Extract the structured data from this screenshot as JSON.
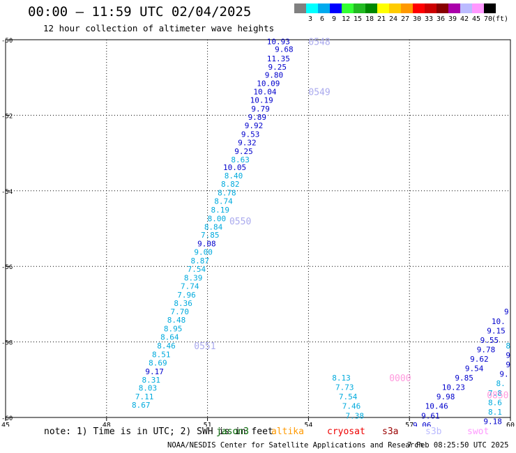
{
  "header": {
    "title": "00:00 — 11:59 UTC 02/04/2025",
    "subtitle": "12 hour collection of altimeter wave heights"
  },
  "legend": {
    "colors": [
      "#808080",
      "#00ffff",
      "#00aaee",
      "#0000ff",
      "#33ff33",
      "#22bb22",
      "#008800",
      "#ffff00",
      "#ffcc00",
      "#ff9900",
      "#ff0000",
      "#cc0000",
      "#880000",
      "#aa00aa",
      "#bbbbff",
      "#ff99ff",
      "#000000"
    ],
    "labels": [
      "3",
      "6",
      "9",
      "12",
      "15",
      "18",
      "21",
      "24",
      "27",
      "30",
      "33",
      "36",
      "39",
      "42",
      "45",
      "70",
      "(ft)"
    ]
  },
  "chart_data": {
    "type": "scatter",
    "xlim": [
      45,
      60
    ],
    "ylim": [
      -60,
      -50
    ],
    "x_ticks": [
      "45",
      "48",
      "51",
      "54",
      "57",
      "60"
    ],
    "y_ticks": [
      "-50",
      "-52",
      "-54",
      "-56",
      "-58",
      "-60"
    ],
    "grid": true,
    "points": [
      {
        "x": 53.45,
        "y": -50.05,
        "label": "10.93",
        "color": "#0000cc"
      },
      {
        "x": 53.55,
        "y": -50.25,
        "label": "9.68",
        "color": "#0000cc"
      },
      {
        "x": 53.45,
        "y": -50.5,
        "label": "11.35",
        "color": "#0000cc"
      },
      {
        "x": 53.35,
        "y": -50.72,
        "label": "9.25",
        "color": "#0000cc"
      },
      {
        "x": 53.25,
        "y": -50.93,
        "label": "9.80",
        "color": "#0000cc"
      },
      {
        "x": 53.15,
        "y": -51.15,
        "label": "10.09",
        "color": "#0000cc"
      },
      {
        "x": 53.05,
        "y": -51.37,
        "label": "10.04",
        "color": "#0000cc"
      },
      {
        "x": 52.95,
        "y": -51.6,
        "label": "10.19",
        "color": "#0000cc"
      },
      {
        "x": 52.85,
        "y": -51.83,
        "label": "9.79",
        "color": "#0000cc"
      },
      {
        "x": 52.75,
        "y": -52.05,
        "label": "9.89",
        "color": "#0000cc"
      },
      {
        "x": 52.65,
        "y": -52.27,
        "label": "9.92",
        "color": "#0000cc"
      },
      {
        "x": 52.55,
        "y": -52.5,
        "label": "9.53",
        "color": "#0000cc"
      },
      {
        "x": 52.45,
        "y": -52.72,
        "label": "9.32",
        "color": "#0000cc"
      },
      {
        "x": 52.35,
        "y": -52.95,
        "label": "9.25",
        "color": "#0000cc"
      },
      {
        "x": 52.25,
        "y": -53.17,
        "label": "8.63",
        "color": "#00aadd"
      },
      {
        "x": 52.15,
        "y": -53.38,
        "label": "10.05",
        "color": "#0000cc"
      },
      {
        "x": 52.05,
        "y": -53.6,
        "label": "8.40",
        "color": "#00aadd"
      },
      {
        "x": 51.95,
        "y": -53.82,
        "label": "8.82",
        "color": "#00aadd"
      },
      {
        "x": 51.85,
        "y": -54.05,
        "label": "8.78",
        "color": "#00aadd"
      },
      {
        "x": 51.75,
        "y": -54.27,
        "label": "8.74",
        "color": "#00aadd"
      },
      {
        "x": 51.65,
        "y": -54.5,
        "label": "8.19",
        "color": "#00aadd"
      },
      {
        "x": 51.55,
        "y": -54.73,
        "label": "8.00",
        "color": "#00aadd"
      },
      {
        "x": 51.45,
        "y": -54.95,
        "label": "8.84",
        "color": "#00aadd"
      },
      {
        "x": 51.35,
        "y": -55.17,
        "label": "7.85",
        "color": "#00aadd"
      },
      {
        "x": 51.25,
        "y": -55.4,
        "label": "9.08",
        "color": "#0000cc"
      },
      {
        "x": 51.15,
        "y": -55.62,
        "label": "9.00",
        "color": "#00aadd"
      },
      {
        "x": 51.05,
        "y": -55.85,
        "label": "8.87",
        "color": "#00aadd"
      },
      {
        "x": 50.95,
        "y": -56.07,
        "label": "7.54",
        "color": "#00aadd"
      },
      {
        "x": 50.85,
        "y": -56.3,
        "label": "8.39",
        "color": "#00aadd"
      },
      {
        "x": 50.75,
        "y": -56.52,
        "label": "7.74",
        "color": "#00aadd"
      },
      {
        "x": 50.65,
        "y": -56.75,
        "label": "7.96",
        "color": "#00aadd"
      },
      {
        "x": 50.55,
        "y": -56.97,
        "label": "8.36",
        "color": "#00aadd"
      },
      {
        "x": 50.45,
        "y": -57.2,
        "label": "7.70",
        "color": "#00aadd"
      },
      {
        "x": 50.35,
        "y": -57.42,
        "label": "8.48",
        "color": "#00aadd"
      },
      {
        "x": 50.25,
        "y": -57.65,
        "label": "8.95",
        "color": "#00aadd"
      },
      {
        "x": 50.15,
        "y": -57.87,
        "label": "8.64",
        "color": "#00aadd"
      },
      {
        "x": 50.05,
        "y": -58.1,
        "label": "8.46",
        "color": "#00aadd"
      },
      {
        "x": 49.9,
        "y": -58.33,
        "label": "8.51",
        "color": "#00aadd"
      },
      {
        "x": 49.8,
        "y": -58.55,
        "label": "8.69",
        "color": "#00aadd"
      },
      {
        "x": 49.7,
        "y": -58.78,
        "label": "9.17",
        "color": "#0000cc"
      },
      {
        "x": 49.6,
        "y": -59.0,
        "label": "8.31",
        "color": "#00aadd"
      },
      {
        "x": 49.5,
        "y": -59.22,
        "label": "8.03",
        "color": "#00aadd"
      },
      {
        "x": 49.4,
        "y": -59.45,
        "label": "7.11",
        "color": "#00aadd"
      },
      {
        "x": 49.3,
        "y": -59.67,
        "label": "8.67",
        "color": "#00aadd"
      },
      {
        "x": 55.25,
        "y": -58.95,
        "label": "8.13",
        "color": "#00aadd"
      },
      {
        "x": 55.35,
        "y": -59.2,
        "label": "7.73",
        "color": "#00aadd"
      },
      {
        "x": 55.45,
        "y": -59.45,
        "label": "7.54",
        "color": "#00aadd"
      },
      {
        "x": 55.55,
        "y": -59.7,
        "label": "7.46",
        "color": "#00aadd"
      },
      {
        "x": 55.65,
        "y": -59.95,
        "label": "7.38",
        "color": "#00aadd"
      },
      {
        "x": 59.95,
        "y": -57.2,
        "label": "9",
        "color": "#0000cc"
      },
      {
        "x": 59.85,
        "y": -57.45,
        "label": "10.",
        "color": "#0000cc"
      },
      {
        "x": 59.85,
        "y": -57.7,
        "label": "9.15",
        "color": "#0000cc"
      },
      {
        "x": 59.65,
        "y": -57.95,
        "label": "9.55",
        "color": "#0000cc"
      },
      {
        "x": 59.55,
        "y": -58.2,
        "label": "9.78",
        "color": "#0000cc"
      },
      {
        "x": 59.35,
        "y": -58.45,
        "label": "9.62",
        "color": "#0000cc"
      },
      {
        "x": 59.2,
        "y": -58.7,
        "label": "9.54",
        "color": "#0000cc"
      },
      {
        "x": 58.9,
        "y": -58.95,
        "label": "9.85",
        "color": "#0000cc"
      },
      {
        "x": 58.65,
        "y": -59.2,
        "label": "10.23",
        "color": "#0000cc"
      },
      {
        "x": 58.35,
        "y": -59.45,
        "label": "9.98",
        "color": "#0000cc"
      },
      {
        "x": 58.15,
        "y": -59.7,
        "label": "10.46",
        "color": "#0000cc"
      },
      {
        "x": 57.9,
        "y": -59.95,
        "label": "9.61",
        "color": "#0000cc"
      },
      {
        "x": 57.65,
        "y": -60.2,
        "label": "9.06",
        "color": "#0000cc"
      },
      {
        "x": 60.0,
        "y": -58.1,
        "label": "8",
        "color": "#00aadd"
      },
      {
        "x": 60.0,
        "y": -58.35,
        "label": "9",
        "color": "#0000cc"
      },
      {
        "x": 60.0,
        "y": -58.6,
        "label": "9",
        "color": "#0000cc"
      },
      {
        "x": 59.95,
        "y": -58.85,
        "label": "9.",
        "color": "#0000cc"
      },
      {
        "x": 59.85,
        "y": -59.1,
        "label": "8.",
        "color": "#00aadd"
      },
      {
        "x": 59.75,
        "y": -59.35,
        "label": "7.8",
        "color": "#00aadd"
      },
      {
        "x": 59.75,
        "y": -59.6,
        "label": "8.6",
        "color": "#00aadd"
      },
      {
        "x": 59.75,
        "y": -59.85,
        "label": "8.1",
        "color": "#00aadd"
      },
      {
        "x": 59.75,
        "y": -60.1,
        "label": "9.18",
        "color": "#0000cc"
      }
    ],
    "time_labels": [
      {
        "x": 54.0,
        "y": -50.05,
        "label": "0548",
        "color": "#aaaaee"
      },
      {
        "x": 54.0,
        "y": -51.37,
        "label": "0549",
        "color": "#aaaaee"
      },
      {
        "x": 51.65,
        "y": -54.8,
        "label": "0550",
        "color": "#aaaaee"
      },
      {
        "x": 50.6,
        "y": -58.1,
        "label": "0551",
        "color": "#aaaaee"
      },
      {
        "x": 56.4,
        "y": -58.95,
        "label": "0000",
        "color": "#ff99dd"
      },
      {
        "x": 59.3,
        "y": -59.4,
        "label": "0850",
        "color": "#ff99dd"
      }
    ]
  },
  "footer": {
    "note": "note: 1) Time is in UTC; 2) SWH is in feet",
    "missions": [
      {
        "name": "jason3",
        "color": "#006600"
      },
      {
        "name": "altika",
        "color": "#ff9900"
      },
      {
        "name": "cryosat",
        "color": "#ee0000"
      },
      {
        "name": "s3a",
        "color": "#990000"
      },
      {
        "name": "s3b",
        "color": "#bbbbff"
      },
      {
        "name": "swot",
        "color": "#ff99ff"
      }
    ],
    "credit": "NOAA/NESDIS Center for Satellite Applications and Research",
    "timestamp": "7 Feb 08:25:50 UTC 2025"
  }
}
